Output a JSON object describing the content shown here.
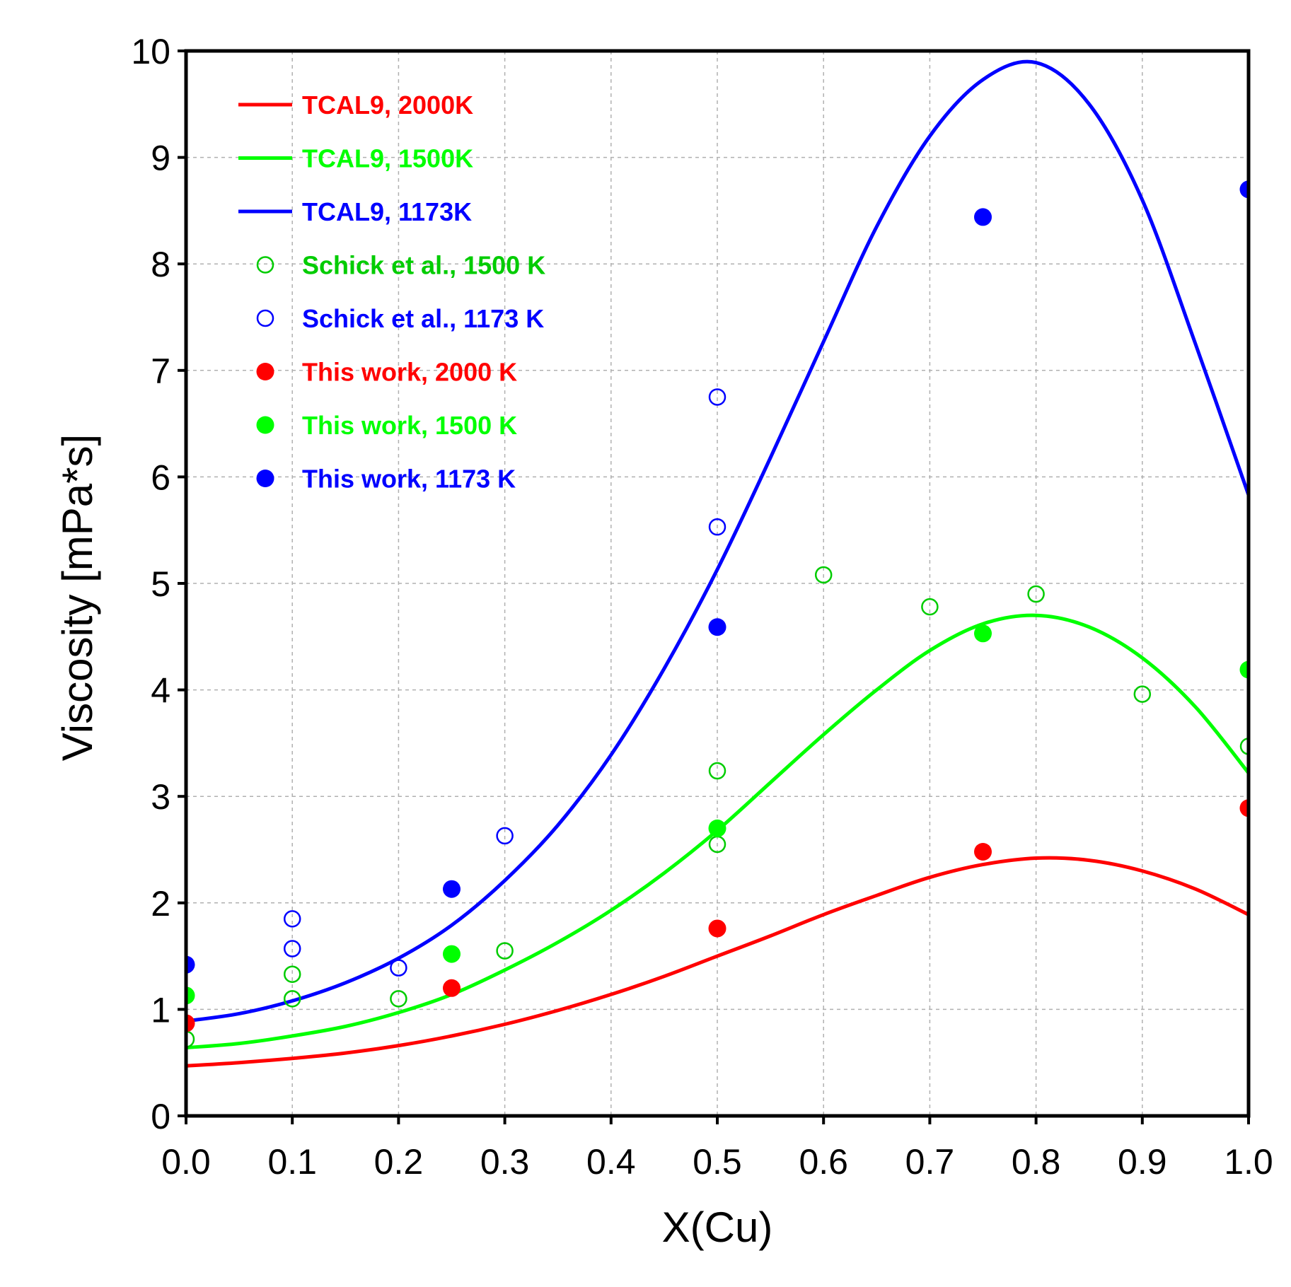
{
  "chart_data": {
    "type": "scatter",
    "title": "",
    "xlabel": "X(Cu)",
    "ylabel": "Viscosity [mPa*s]",
    "xlim": [
      0.0,
      1.0
    ],
    "ylim": [
      0,
      10
    ],
    "xticks": [
      "0.0",
      "0.1",
      "0.2",
      "0.3",
      "0.4",
      "0.5",
      "0.6",
      "0.7",
      "0.8",
      "0.9",
      "1.0"
    ],
    "yticks": [
      "0",
      "1",
      "2",
      "3",
      "4",
      "5",
      "6",
      "7",
      "8",
      "9",
      "10"
    ],
    "grid": true,
    "legend_position": "top-left",
    "series": [
      {
        "name": "TCAL9, 2000K",
        "kind": "line",
        "color": "#ff0000",
        "x": [
          0.0,
          0.05,
          0.1,
          0.15,
          0.2,
          0.25,
          0.3,
          0.35,
          0.4,
          0.45,
          0.5,
          0.55,
          0.6,
          0.65,
          0.7,
          0.75,
          0.8,
          0.85,
          0.9,
          0.95,
          1.0
        ],
        "y": [
          0.47,
          0.5,
          0.54,
          0.59,
          0.66,
          0.75,
          0.86,
          0.99,
          1.14,
          1.31,
          1.5,
          1.69,
          1.89,
          2.07,
          2.24,
          2.36,
          2.42,
          2.4,
          2.3,
          2.13,
          1.89
        ]
      },
      {
        "name": "TCAL9, 1500K",
        "kind": "line",
        "color": "#00ff00",
        "x": [
          0.0,
          0.05,
          0.1,
          0.15,
          0.2,
          0.25,
          0.3,
          0.35,
          0.4,
          0.45,
          0.5,
          0.55,
          0.6,
          0.65,
          0.7,
          0.75,
          0.8,
          0.85,
          0.9,
          0.95,
          1.0
        ],
        "y": [
          0.64,
          0.68,
          0.75,
          0.84,
          0.97,
          1.14,
          1.37,
          1.63,
          1.93,
          2.28,
          2.68,
          3.13,
          3.58,
          4.0,
          4.37,
          4.62,
          4.7,
          4.59,
          4.3,
          3.84,
          3.22
        ]
      },
      {
        "name": "TCAL9, 1173K",
        "kind": "line",
        "color": "#0000ff",
        "x": [
          0.0,
          0.05,
          0.1,
          0.15,
          0.2,
          0.25,
          0.3,
          0.35,
          0.4,
          0.45,
          0.5,
          0.55,
          0.6,
          0.65,
          0.7,
          0.75,
          0.8,
          0.85,
          0.9,
          0.95,
          1.0
        ],
        "y": [
          0.89,
          0.96,
          1.08,
          1.25,
          1.48,
          1.79,
          2.21,
          2.73,
          3.39,
          4.2,
          5.13,
          6.18,
          7.27,
          8.35,
          9.2,
          9.73,
          9.89,
          9.5,
          8.6,
          7.25,
          5.83
        ]
      },
      {
        "name": "Schick et al., 1500 K",
        "kind": "scatter",
        "marker": "open-circle",
        "color": "#00cc00",
        "x": [
          0.0,
          0.1,
          0.1,
          0.2,
          0.3,
          0.5,
          0.5,
          0.6,
          0.7,
          0.8,
          0.9,
          1.0
        ],
        "y": [
          0.72,
          1.1,
          1.33,
          1.1,
          1.55,
          2.55,
          3.24,
          5.08,
          4.78,
          4.9,
          3.96,
          3.47
        ]
      },
      {
        "name": "Schick et al., 1173 K",
        "kind": "scatter",
        "marker": "open-circle",
        "color": "#0000ff",
        "x": [
          0.1,
          0.1,
          0.2,
          0.3,
          0.5,
          0.5
        ],
        "y": [
          1.85,
          1.57,
          1.39,
          2.63,
          5.53,
          6.75
        ]
      },
      {
        "name": "This work, 2000 K",
        "kind": "scatter",
        "marker": "filled-circle",
        "color": "#ff0000",
        "x": [
          0.0,
          0.25,
          0.5,
          0.75,
          1.0
        ],
        "y": [
          0.87,
          1.2,
          1.76,
          2.48,
          2.89
        ]
      },
      {
        "name": "This work, 1500 K",
        "kind": "scatter",
        "marker": "filled-circle",
        "color": "#00ff00",
        "x": [
          0.0,
          0.25,
          0.5,
          0.75,
          1.0
        ],
        "y": [
          1.13,
          1.52,
          2.7,
          4.53,
          4.19
        ]
      },
      {
        "name": "This work, 1173 K",
        "kind": "scatter",
        "marker": "filled-circle",
        "color": "#0000ff",
        "x": [
          0.0,
          0.25,
          0.5,
          0.75,
          1.0
        ],
        "y": [
          1.42,
          2.13,
          4.59,
          8.44,
          8.7
        ]
      }
    ]
  }
}
